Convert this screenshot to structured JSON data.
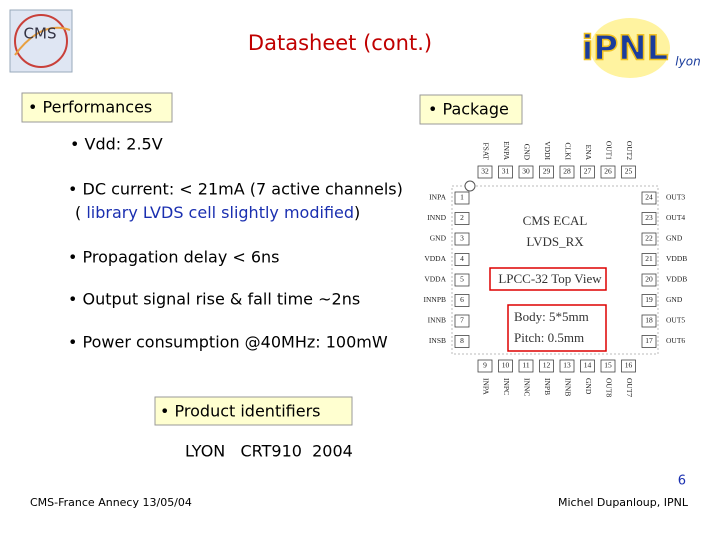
{
  "header": {
    "title": "Datasheet (cont.)",
    "logos": {
      "left": "CMS",
      "right": "iPNL",
      "right_sub": "lyon"
    }
  },
  "performances": {
    "heading": "• Performances",
    "items": [
      "• Vdd: 2.5V",
      "• DC current: < 21mA (7 active channels)",
      "• Propagation delay < 6ns",
      "• Output signal rise & fall time ~2ns",
      "• Power consumption @40MHz: 100mW"
    ],
    "note": {
      "open": "( ",
      "text": "library LVDS cell slightly modified",
      "close": ")"
    }
  },
  "package": {
    "heading": "• Package",
    "chip": {
      "line1": "CMS ECAL",
      "line2": "LVDS_RX",
      "view": "LPCC-32 Top View",
      "body": "Body: 5*5mm",
      "pitch": "Pitch: 0.5mm"
    },
    "pins": {
      "top": [
        {
          "number": 32,
          "name": "FSAT"
        },
        {
          "number": 31,
          "name": "ENPA"
        },
        {
          "number": 30,
          "name": "GND"
        },
        {
          "number": 29,
          "name": "VDDI"
        },
        {
          "number": 28,
          "name": "CLKI"
        },
        {
          "number": 27,
          "name": "ENA"
        },
        {
          "number": 26,
          "name": "OUT1"
        },
        {
          "number": 25,
          "name": "OUT2"
        }
      ],
      "left": [
        {
          "number": 1,
          "name": "INPA"
        },
        {
          "number": 2,
          "name": "INND"
        },
        {
          "number": 3,
          "name": "GND"
        },
        {
          "number": 4,
          "name": "VDDA"
        },
        {
          "number": 5,
          "name": "VDDA"
        },
        {
          "number": 6,
          "name": "INNPB"
        },
        {
          "number": 7,
          "name": "INNB"
        },
        {
          "number": 8,
          "name": "INSB"
        }
      ],
      "bottom": [
        {
          "number": 9,
          "name": "INPA"
        },
        {
          "number": 10,
          "name": "INPC"
        },
        {
          "number": 11,
          "name": "INNC"
        },
        {
          "number": 12,
          "name": "INPB"
        },
        {
          "number": 13,
          "name": "INNB"
        },
        {
          "number": 14,
          "name": "GND"
        },
        {
          "number": 15,
          "name": "OUT8"
        },
        {
          "number": 16,
          "name": "OUT7"
        }
      ],
      "right": [
        {
          "number": 24,
          "name": "OUT3"
        },
        {
          "number": 23,
          "name": "OUT4"
        },
        {
          "number": 22,
          "name": "GND"
        },
        {
          "number": 21,
          "name": "VDDB"
        },
        {
          "number": 20,
          "name": "VDDB"
        },
        {
          "number": 19,
          "name": "GND"
        },
        {
          "number": 18,
          "name": "OUT5"
        },
        {
          "number": 17,
          "name": "OUT6"
        }
      ]
    }
  },
  "product": {
    "heading": "• Product identifiers",
    "text": "LYON   CRT910  2004"
  },
  "footer": {
    "page": "6",
    "left": "CMS-France Annecy 13/05/04",
    "right": "Michel Dupanloup, IPNL"
  }
}
